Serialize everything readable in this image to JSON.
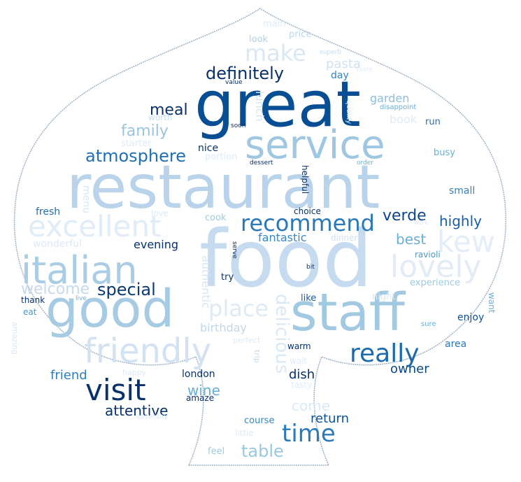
{
  "word_cloud": {
    "words": [
      {
        "text": "food",
        "color": "#c6dbef"
      },
      {
        "text": "restaurant",
        "color": "#b9d3ea"
      },
      {
        "text": "great",
        "color": "#084e94"
      },
      {
        "text": "good",
        "color": "#a7cbe3"
      },
      {
        "text": "staff",
        "color": "#a2c9e2"
      },
      {
        "text": "service",
        "color": "#9fc7e1"
      },
      {
        "text": "italian",
        "color": "#a8cde4"
      },
      {
        "text": "friendly",
        "color": "#d2e2f2"
      },
      {
        "text": "excellent",
        "color": "#e0ecf8"
      },
      {
        "text": "lovely",
        "color": "#e2ecf7"
      },
      {
        "text": "kew",
        "color": "#e4eef8"
      },
      {
        "text": "visit",
        "color": "#08306b"
      },
      {
        "text": "time",
        "color": "#2b7bba"
      },
      {
        "text": "really",
        "color": "#1c69ad"
      },
      {
        "text": "recommend",
        "color": "#2a78b8"
      },
      {
        "text": "make",
        "color": "#d9e8f5"
      },
      {
        "text": "place",
        "color": "#deebf7"
      },
      {
        "text": "definitely",
        "color": "#08306b"
      },
      {
        "text": "atmosphere",
        "color": "#2170b5"
      },
      {
        "text": "family",
        "color": "#9dc4df"
      },
      {
        "text": "meal",
        "color": "#08306b"
      },
      {
        "text": "special",
        "color": "#0b3a75"
      },
      {
        "text": "welcome",
        "color": "#c5daee"
      },
      {
        "text": "table",
        "color": "#9ac8e0"
      },
      {
        "text": "delicious",
        "color": "#dbe9f6"
      },
      {
        "text": "verde",
        "color": "#0b468a"
      },
      {
        "text": "highly",
        "color": "#1a5fa6"
      },
      {
        "text": "best",
        "color": "#6aaed6"
      },
      {
        "text": "wine",
        "color": "#6aaed6"
      },
      {
        "text": "attentive",
        "color": "#08306b"
      },
      {
        "text": "return",
        "color": "#0d539a"
      },
      {
        "text": "owner",
        "color": "#084888"
      },
      {
        "text": "friend",
        "color": "#2f7ebc"
      },
      {
        "text": "dish",
        "color": "#08306b"
      },
      {
        "text": "evening",
        "color": "#08306b"
      },
      {
        "text": "fantastic",
        "color": "#3b87c2"
      },
      {
        "text": "birthday",
        "color": "#c0d8ec"
      },
      {
        "text": "authentic",
        "color": "#d6e6f4"
      },
      {
        "text": "come",
        "color": "#dbe9f6"
      },
      {
        "text": "pasta",
        "color": "#d0e2f2"
      },
      {
        "text": "garden",
        "color": "#8bbfdf"
      },
      {
        "text": "book",
        "color": "#deebf7"
      },
      {
        "text": "day",
        "color": "#3383bf"
      },
      {
        "text": "lunch",
        "color": "#d5e5f4"
      },
      {
        "text": "nice",
        "color": "#08306b"
      },
      {
        "text": "menu",
        "color": "#d8e7f5"
      },
      {
        "text": "fresh",
        "color": "#2070b4"
      },
      {
        "text": "wonderful",
        "color": "#dce9f6"
      },
      {
        "text": "experience",
        "color": "#9ecae1"
      },
      {
        "text": "enjoy",
        "color": "#0d509a"
      },
      {
        "text": "area",
        "color": "#2b79b9"
      },
      {
        "text": "small",
        "color": "#3282be"
      },
      {
        "text": "busy",
        "color": "#6baed6"
      },
      {
        "text": "run",
        "color": "#2171b5"
      },
      {
        "text": "price",
        "color": "#bdd7ec"
      },
      {
        "text": "main",
        "color": "#deebf7"
      },
      {
        "text": "look",
        "color": "#b0d2e8"
      },
      {
        "text": "worth",
        "color": "#c6dbef"
      },
      {
        "text": "starter",
        "color": "#deebf7"
      },
      {
        "text": "portion",
        "color": "#deebf7"
      },
      {
        "text": "cook",
        "color": "#9ecae1"
      },
      {
        "text": "love",
        "color": "#deebf7"
      },
      {
        "text": "choice",
        "color": "#08306b"
      },
      {
        "text": "dinner",
        "color": "#d0e1f2"
      },
      {
        "text": "night",
        "color": "#dbe9f6"
      },
      {
        "text": "like",
        "color": "#1a5ea6"
      },
      {
        "text": "try",
        "color": "#08306b"
      },
      {
        "text": "ravioli",
        "color": "#4a98c9"
      },
      {
        "text": "want",
        "color": "#6aaed6"
      },
      {
        "text": "sure",
        "color": "#6aaed6"
      },
      {
        "text": "thank",
        "color": "#08306b"
      },
      {
        "text": "eat",
        "color": "#4a98c9"
      },
      {
        "text": "amazing",
        "color": "#d8e7f5"
      },
      {
        "text": "london",
        "color": "#08306b"
      },
      {
        "text": "amaze",
        "color": "#08306b"
      },
      {
        "text": "happy",
        "color": "#deebf7"
      },
      {
        "text": "tasty",
        "color": "#deebf7"
      },
      {
        "text": "wait",
        "color": "#deebf7"
      },
      {
        "text": "warm",
        "color": "#08306b"
      },
      {
        "text": "perfect",
        "color": "#deebf7"
      },
      {
        "text": "trip",
        "color": "#c6dbef"
      },
      {
        "text": "saturday",
        "color": "#deebf7"
      },
      {
        "text": "course",
        "color": "#3a87c0"
      },
      {
        "text": "little",
        "color": "#deebf7"
      },
      {
        "text": "feel",
        "color": "#9ecae1"
      },
      {
        "text": "helpful",
        "color": "#08306b"
      },
      {
        "text": "dessert",
        "color": "#08306b"
      },
      {
        "text": "order",
        "color": "#6aaed6"
      },
      {
        "text": "soon",
        "color": "#08306b"
      },
      {
        "text": "value",
        "color": "#08306b"
      },
      {
        "text": "superb",
        "color": "#c6dbef"
      },
      {
        "text": "taste",
        "color": "#deebf7"
      },
      {
        "text": "disappoint",
        "color": "#6aaed6"
      },
      {
        "text": "serve",
        "color": "#08306b"
      },
      {
        "text": "bit",
        "color": "#08306b"
      },
      {
        "text": "live",
        "color": "#6aaed6"
      },
      {
        "text": "walk",
        "color": "#deebf7"
      },
      {
        "text": "quality",
        "color": "#deebf7"
      }
    ]
  }
}
